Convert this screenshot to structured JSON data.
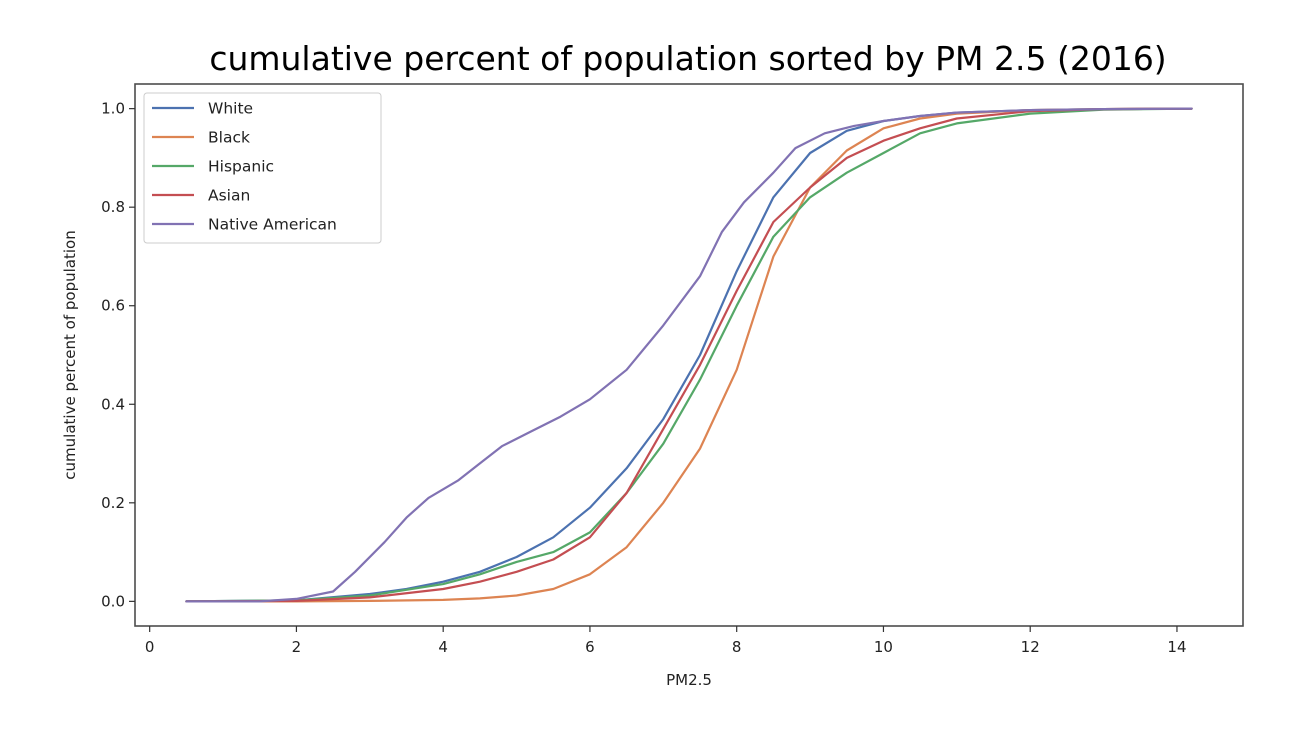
{
  "chart_data": {
    "type": "line",
    "title": "cumulative percent of population sorted by PM 2.5 (2016)",
    "xlabel": "PM2.5",
    "ylabel": "cumulative percent of population",
    "xlim": [
      -0.2,
      14.9
    ],
    "ylim": [
      -0.05,
      1.05
    ],
    "xticks": [
      0,
      2,
      4,
      6,
      8,
      10,
      12,
      14
    ],
    "xtick_labels": [
      "0",
      "2",
      "4",
      "6",
      "8",
      "10",
      "12",
      "14"
    ],
    "yticks": [
      0.0,
      0.2,
      0.4,
      0.6,
      0.8,
      1.0
    ],
    "ytick_labels": [
      "0.0",
      "0.2",
      "0.4",
      "0.6",
      "0.8",
      "1.0"
    ],
    "grid": false,
    "legend_position": "top-left",
    "series": [
      {
        "name": "White",
        "color": "#4c72b0",
        "x": [
          0.5,
          2.0,
          3.0,
          3.5,
          4.0,
          4.5,
          5.0,
          5.5,
          6.0,
          6.5,
          7.0,
          7.5,
          8.0,
          8.5,
          9.0,
          9.5,
          10.0,
          10.5,
          11.0,
          12.0,
          13.0,
          14.2
        ],
        "y": [
          0.0,
          0.002,
          0.015,
          0.025,
          0.04,
          0.06,
          0.09,
          0.13,
          0.19,
          0.27,
          0.37,
          0.5,
          0.67,
          0.82,
          0.91,
          0.955,
          0.975,
          0.985,
          0.992,
          0.997,
          0.999,
          1.0
        ]
      },
      {
        "name": "Black",
        "color": "#dd8452",
        "x": [
          0.5,
          2.0,
          3.0,
          4.0,
          4.5,
          5.0,
          5.5,
          6.0,
          6.5,
          7.0,
          7.5,
          8.0,
          8.5,
          9.0,
          9.5,
          10.0,
          10.5,
          11.0,
          12.0,
          13.0,
          14.2
        ],
        "y": [
          0.0,
          0.0,
          0.001,
          0.003,
          0.006,
          0.012,
          0.025,
          0.055,
          0.11,
          0.2,
          0.31,
          0.47,
          0.7,
          0.84,
          0.915,
          0.96,
          0.98,
          0.99,
          0.997,
          0.999,
          1.0
        ]
      },
      {
        "name": "Hispanic",
        "color": "#55a868",
        "x": [
          0.5,
          2.0,
          3.0,
          4.0,
          4.5,
          5.0,
          5.5,
          6.0,
          6.5,
          7.0,
          7.5,
          8.0,
          8.5,
          9.0,
          9.5,
          10.0,
          10.5,
          11.0,
          12.0,
          13.0,
          14.2
        ],
        "y": [
          0.0,
          0.002,
          0.012,
          0.035,
          0.055,
          0.08,
          0.1,
          0.14,
          0.22,
          0.32,
          0.45,
          0.6,
          0.74,
          0.82,
          0.87,
          0.91,
          0.95,
          0.97,
          0.99,
          0.998,
          1.0
        ]
      },
      {
        "name": "Asian",
        "color": "#c44e52",
        "x": [
          0.5,
          2.0,
          3.0,
          4.0,
          4.5,
          5.0,
          5.5,
          6.0,
          6.5,
          7.0,
          7.5,
          8.0,
          8.5,
          9.0,
          9.5,
          10.0,
          10.5,
          11.0,
          12.0,
          13.0,
          14.2
        ],
        "y": [
          0.0,
          0.001,
          0.008,
          0.025,
          0.04,
          0.06,
          0.085,
          0.13,
          0.22,
          0.35,
          0.48,
          0.63,
          0.77,
          0.84,
          0.9,
          0.935,
          0.96,
          0.98,
          0.995,
          0.999,
          1.0
        ]
      },
      {
        "name": "Native American",
        "color": "#8172b3",
        "x": [
          0.5,
          1.5,
          2.0,
          2.5,
          2.8,
          3.2,
          3.5,
          3.8,
          4.2,
          4.5,
          4.8,
          5.2,
          5.6,
          6.0,
          6.5,
          7.0,
          7.5,
          7.8,
          8.1,
          8.5,
          8.8,
          9.2,
          9.6,
          10.0,
          10.5,
          11.0,
          12.0,
          13.0,
          14.2
        ],
        "y": [
          0.0,
          0.0,
          0.005,
          0.02,
          0.06,
          0.12,
          0.17,
          0.21,
          0.245,
          0.28,
          0.315,
          0.345,
          0.375,
          0.41,
          0.47,
          0.56,
          0.66,
          0.75,
          0.81,
          0.87,
          0.92,
          0.95,
          0.965,
          0.975,
          0.985,
          0.992,
          0.997,
          0.999,
          1.0
        ]
      }
    ]
  }
}
